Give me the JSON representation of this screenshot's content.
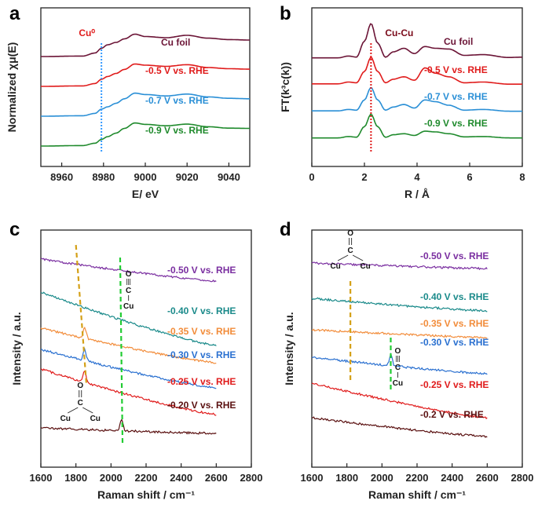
{
  "chart_data": [
    {
      "panel": "a",
      "type": "line",
      "xlabel": "E/ eV",
      "ylabel": "Normalized χμ(E)",
      "xlim": [
        8950,
        9050
      ],
      "xticks": [
        8960,
        8980,
        9000,
        9020,
        9040
      ],
      "marker": {
        "label": "Cu⁰",
        "x": 8979,
        "color": "#3399ff",
        "style": "dotted"
      },
      "series": [
        {
          "name": "Cu foil",
          "color": "#6b1436",
          "x": [
            8950,
            8970,
            8976,
            8979,
            8982,
            8986,
            8990,
            8995,
            9000,
            9010,
            9020,
            9030,
            9040,
            9050
          ],
          "y": [
            0,
            0.02,
            0.15,
            0.35,
            0.5,
            0.6,
            0.75,
            0.95,
            0.85,
            0.8,
            0.9,
            0.78,
            0.72,
            0.7
          ]
        },
        {
          "name": "-0.5 V vs. RHE",
          "color": "#e01b1b",
          "x": [
            8950,
            8970,
            8976,
            8979,
            8982,
            8986,
            8990,
            8995,
            9000,
            9010,
            9020,
            9030,
            9040,
            9050
          ],
          "y": [
            0,
            0.02,
            0.12,
            0.3,
            0.42,
            0.55,
            0.72,
            0.95,
            0.9,
            0.85,
            0.92,
            0.8,
            0.75,
            0.73
          ]
        },
        {
          "name": "-0.7 V vs. RHE",
          "color": "#2a8fd6",
          "x": [
            8950,
            8970,
            8976,
            8979,
            8982,
            8986,
            8990,
            8995,
            9000,
            9010,
            9020,
            9030,
            9040,
            9050
          ],
          "y": [
            0,
            0.02,
            0.12,
            0.3,
            0.4,
            0.55,
            0.74,
            0.98,
            0.92,
            0.86,
            0.94,
            0.82,
            0.76,
            0.74
          ]
        },
        {
          "name": "-0.9 V vs. RHE",
          "color": "#1f8a2c",
          "x": [
            8950,
            8970,
            8976,
            8979,
            8982,
            8986,
            8990,
            8995,
            9000,
            9010,
            9020,
            9030,
            9040,
            9050
          ],
          "y": [
            0,
            0.02,
            0.12,
            0.28,
            0.4,
            0.55,
            0.75,
            0.98,
            0.92,
            0.86,
            0.93,
            0.82,
            0.76,
            0.75
          ]
        }
      ]
    },
    {
      "panel": "b",
      "type": "line",
      "xlabel": "R / Å",
      "ylabel": "FT(k³c(k))",
      "xlim": [
        0,
        8
      ],
      "xticks": [
        0,
        2,
        4,
        6,
        8
      ],
      "marker": {
        "label": "Cu-Cu",
        "x": 2.25,
        "color": "#e01b1b",
        "style": "dotted"
      },
      "series": [
        {
          "name": "Cu foil",
          "color": "#6b1436",
          "x": [
            1,
            1.4,
            1.7,
            2.0,
            2.25,
            2.5,
            2.8,
            3.1,
            3.5,
            3.9,
            4.3,
            4.7,
            5.2,
            5.8,
            6.5,
            7.5,
            8
          ],
          "y": [
            0.03,
            0.08,
            0.05,
            0.5,
            1.0,
            0.45,
            0.05,
            0.2,
            0.3,
            0.15,
            0.35,
            0.3,
            0.28,
            0.1,
            0.12,
            0.04,
            0.05
          ]
        },
        {
          "name": "-0.5 V vs. RHE",
          "color": "#e01b1b",
          "x": [
            1,
            1.4,
            1.7,
            2.0,
            2.25,
            2.5,
            2.8,
            3.1,
            3.5,
            3.9,
            4.3,
            4.7,
            5.2,
            5.8,
            6.5,
            7.5,
            8
          ],
          "y": [
            0.05,
            0.1,
            0.08,
            0.4,
            0.8,
            0.4,
            0.08,
            0.18,
            0.25,
            0.15,
            0.5,
            0.35,
            0.25,
            0.08,
            0.1,
            0.04,
            0.04
          ]
        },
        {
          "name": "-0.7 V vs. RHE",
          "color": "#2a8fd6",
          "x": [
            1,
            1.4,
            1.7,
            2.0,
            2.25,
            2.5,
            2.8,
            3.1,
            3.5,
            3.9,
            4.3,
            4.7,
            5.2,
            5.8,
            6.5,
            7.5,
            8
          ],
          "y": [
            0.04,
            0.08,
            0.06,
            0.35,
            0.7,
            0.35,
            0.06,
            0.15,
            0.22,
            0.12,
            0.35,
            0.3,
            0.2,
            0.06,
            0.08,
            0.03,
            0.03
          ]
        },
        {
          "name": "-0.9 V vs. RHE",
          "color": "#1f8a2c",
          "x": [
            1,
            1.4,
            1.7,
            2.0,
            2.25,
            2.5,
            2.8,
            3.1,
            3.5,
            3.9,
            4.3,
            4.7,
            5.2,
            5.8,
            6.5,
            7.5,
            8
          ],
          "y": [
            0.03,
            0.07,
            0.05,
            0.35,
            0.7,
            0.35,
            0.05,
            0.12,
            0.15,
            0.1,
            0.22,
            0.2,
            0.15,
            0.06,
            0.07,
            0.03,
            0.03
          ]
        }
      ]
    },
    {
      "panel": "c",
      "type": "line",
      "xlabel": "Raman shift / cm⁻¹",
      "ylabel": "Intensity / a.u.",
      "xlim": [
        1600,
        2800
      ],
      "xticks": [
        1600,
        1800,
        2000,
        2200,
        2400,
        2600,
        2800
      ],
      "markers": [
        {
          "x": 1850,
          "color": "#d4a017",
          "style": "dashed"
        },
        {
          "x": 2060,
          "color": "#22cc33",
          "style": "dashed"
        }
      ],
      "annotations": [
        {
          "kind": "bridge-CO",
          "text": [
            "O",
            "C",
            "Cu",
            "Cu"
          ]
        },
        {
          "kind": "linear-CO",
          "text": [
            "O",
            "C",
            "Cu"
          ]
        }
      ],
      "series": [
        {
          "name": "-0.50 V vs. RHE",
          "color": "#7a2ea0",
          "x": [
            1600,
            1800,
            2000,
            2200,
            2400,
            2600
          ],
          "y": [
            1.0,
            0.95,
            0.88,
            0.8,
            0.74,
            0.7
          ],
          "peaks": []
        },
        {
          "name": "-0.40 V vs. RHE",
          "color": "#1a8a8a",
          "x": [
            1600,
            1800,
            2000,
            2200,
            2400,
            2600
          ],
          "y": [
            1.0,
            0.88,
            0.65,
            0.45,
            0.25,
            0.12
          ],
          "peaks": []
        },
        {
          "name": "-0.35 V vs. RHE",
          "color": "#f28c3a",
          "x": [
            1600,
            1800,
            2000,
            2200,
            2400,
            2600
          ],
          "y": [
            1.0,
            0.88,
            0.7,
            0.55,
            0.42,
            0.35
          ],
          "peaks": [
            1850
          ]
        },
        {
          "name": "-0.30 V vs. RHE",
          "color": "#2a70d0",
          "x": [
            1600,
            1800,
            2000,
            2200,
            2400,
            2600
          ],
          "y": [
            1.0,
            0.88,
            0.68,
            0.52,
            0.4,
            0.32
          ],
          "peaks": [
            1850
          ]
        },
        {
          "name": "-0.25 V vs. RHE",
          "color": "#e01b1b",
          "x": [
            1600,
            1800,
            2000,
            2200,
            2400,
            2600
          ],
          "y": [
            1.0,
            0.9,
            0.7,
            0.52,
            0.38,
            0.28
          ],
          "peaks": [
            1850
          ]
        },
        {
          "name": "-0.20 V vs. RHE",
          "color": "#5a1010",
          "x": [
            1600,
            1800,
            2000,
            2200,
            2400,
            2600
          ],
          "y": [
            1.0,
            0.98,
            0.95,
            0.92,
            0.9,
            0.88
          ],
          "peaks": [
            2060
          ]
        }
      ]
    },
    {
      "panel": "d",
      "type": "line",
      "xlabel": "Raman shift / cm⁻¹",
      "ylabel": "Intensity / a.u.",
      "xlim": [
        1600,
        2800
      ],
      "xticks": [
        1600,
        1800,
        2000,
        2200,
        2400,
        2600,
        2800
      ],
      "markers": [
        {
          "x": 1820,
          "color": "#d4a017",
          "style": "dashed"
        },
        {
          "x": 2050,
          "color": "#22cc33",
          "style": "dashed"
        }
      ],
      "annotations": [
        {
          "kind": "bridge-CO",
          "text": [
            "O",
            "C",
            "Cu",
            "Cu"
          ]
        },
        {
          "kind": "linear-CO",
          "text": [
            "O",
            "C",
            "Cu"
          ]
        }
      ],
      "series": [
        {
          "name": "-0.50 V vs. RHE",
          "color": "#7a2ea0",
          "x": [
            1600,
            1800,
            2000,
            2200,
            2400,
            2600
          ],
          "y": [
            1.0,
            0.92,
            0.85,
            0.8,
            0.78,
            0.76
          ],
          "peaks": []
        },
        {
          "name": "-0.40 V vs. RHE",
          "color": "#1a8a8a",
          "x": [
            1600,
            1800,
            2000,
            2200,
            2400,
            2600
          ],
          "y": [
            1.0,
            0.92,
            0.82,
            0.75,
            0.7,
            0.66
          ],
          "peaks": []
        },
        {
          "name": "-0.35 V vs. RHE",
          "color": "#f28c3a",
          "x": [
            1600,
            1800,
            2000,
            2200,
            2400,
            2600
          ],
          "y": [
            1.0,
            0.95,
            0.9,
            0.86,
            0.84,
            0.82
          ],
          "peaks": []
        },
        {
          "name": "-0.30 V vs. RHE",
          "color": "#2a70d0",
          "x": [
            1600,
            1800,
            2000,
            2200,
            2400,
            2600
          ],
          "y": [
            1.0,
            0.9,
            0.8,
            0.75,
            0.72,
            0.7
          ],
          "peaks": [
            2050
          ]
        },
        {
          "name": "-0.25 V vs. RHE",
          "color": "#e01b1b",
          "x": [
            1600,
            1800,
            2000,
            2200,
            2400,
            2600
          ],
          "y": [
            1.0,
            0.85,
            0.65,
            0.45,
            0.3,
            0.2
          ],
          "peaks": []
        },
        {
          "name": "-0.2 V vs. RHE",
          "color": "#5a1010",
          "x": [
            1600,
            1800,
            2000,
            2200,
            2400,
            2600
          ],
          "y": [
            1.0,
            0.9,
            0.78,
            0.68,
            0.6,
            0.54
          ],
          "peaks": []
        }
      ]
    }
  ],
  "panel_labels": [
    "a",
    "b",
    "c",
    "d"
  ]
}
